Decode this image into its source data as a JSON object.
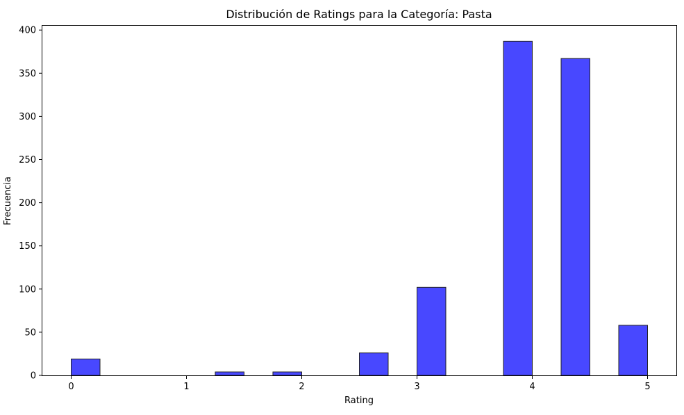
{
  "colors": {
    "bar_fill": "#4848ff",
    "bar_edge": "#222222",
    "axis": "#000000",
    "background": "#ffffff"
  },
  "chart_data": {
    "type": "bar",
    "title": "Distribución de Ratings para la Categoría: Pasta",
    "xlabel": "Rating",
    "ylabel": "Frecuencia",
    "xlim": [
      -0.25,
      5.25
    ],
    "ylim": [
      0,
      405
    ],
    "xticks": [
      0,
      1,
      2,
      3,
      4,
      5
    ],
    "yticks": [
      0,
      50,
      100,
      150,
      200,
      250,
      300,
      350,
      400
    ],
    "grid": false,
    "legend": "none",
    "bins": [
      {
        "x0": 0.0,
        "x1": 0.25,
        "count": 19
      },
      {
        "x0": 1.25,
        "x1": 1.5,
        "count": 4
      },
      {
        "x0": 1.75,
        "x1": 2.0,
        "count": 4
      },
      {
        "x0": 2.5,
        "x1": 2.75,
        "count": 26
      },
      {
        "x0": 3.0,
        "x1": 3.25,
        "count": 102
      },
      {
        "x0": 3.75,
        "x1": 4.0,
        "count": 387
      },
      {
        "x0": 4.25,
        "x1": 4.5,
        "count": 367
      },
      {
        "x0": 4.75,
        "x1": 5.0,
        "count": 58
      }
    ]
  }
}
